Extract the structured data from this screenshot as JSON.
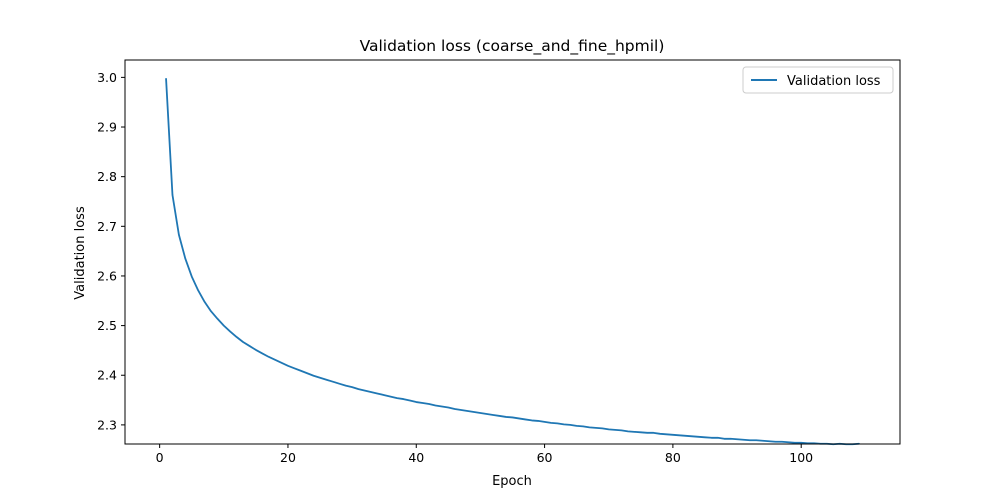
{
  "chart_data": {
    "type": "line",
    "title": "Validation loss (coarse_and_fine_hpmil)",
    "xlabel": "Epoch",
    "ylabel": "Validation loss",
    "xlim": [
      -5.4,
      115.4
    ],
    "ylim": [
      2.2615,
      3.035
    ],
    "xticks": [
      0,
      20,
      40,
      60,
      80,
      100
    ],
    "xtick_labels": [
      "0",
      "20",
      "40",
      "60",
      "80",
      "100"
    ],
    "yticks": [
      2.3,
      2.4,
      2.5,
      2.6,
      2.7,
      2.8,
      2.9,
      3.0
    ],
    "ytick_labels": [
      "2.3",
      "2.4",
      "2.5",
      "2.6",
      "2.7",
      "2.8",
      "2.9",
      "3.0"
    ],
    "grid": false,
    "legend_position": "top-right",
    "series": [
      {
        "name": "Validation loss",
        "color": "#1f77b4",
        "x": [
          1,
          2,
          3,
          4,
          5,
          6,
          7,
          8,
          9,
          10,
          11,
          12,
          13,
          14,
          15,
          16,
          17,
          18,
          19,
          20,
          21,
          22,
          23,
          24,
          25,
          26,
          27,
          28,
          29,
          30,
          31,
          32,
          33,
          34,
          35,
          36,
          37,
          38,
          39,
          40,
          41,
          42,
          43,
          44,
          45,
          46,
          47,
          48,
          49,
          50,
          51,
          52,
          53,
          54,
          55,
          56,
          57,
          58,
          59,
          60,
          61,
          62,
          63,
          64,
          65,
          66,
          67,
          68,
          69,
          70,
          71,
          72,
          73,
          74,
          75,
          76,
          77,
          78,
          79,
          80,
          81,
          82,
          83,
          84,
          85,
          86,
          87,
          88,
          89,
          90,
          91,
          92,
          93,
          94,
          95,
          96,
          97,
          98,
          99,
          100,
          101,
          102,
          103,
          104,
          105,
          106,
          107,
          108,
          109
        ],
        "values": [
          2.997,
          2.763,
          2.683,
          2.635,
          2.599,
          2.571,
          2.548,
          2.529,
          2.514,
          2.5,
          2.488,
          2.477,
          2.467,
          2.459,
          2.451,
          2.444,
          2.437,
          2.431,
          2.425,
          2.419,
          2.414,
          2.409,
          2.404,
          2.399,
          2.395,
          2.391,
          2.387,
          2.383,
          2.379,
          2.376,
          2.372,
          2.369,
          2.366,
          2.363,
          2.36,
          2.357,
          2.354,
          2.352,
          2.349,
          2.346,
          2.344,
          2.342,
          2.339,
          2.337,
          2.335,
          2.332,
          2.33,
          2.328,
          2.326,
          2.324,
          2.322,
          2.32,
          2.318,
          2.316,
          2.315,
          2.313,
          2.311,
          2.309,
          2.308,
          2.306,
          2.304,
          2.303,
          2.301,
          2.3,
          2.298,
          2.297,
          2.295,
          2.294,
          2.293,
          2.291,
          2.29,
          2.289,
          2.287,
          2.286,
          2.285,
          2.284,
          2.284,
          2.282,
          2.281,
          2.28,
          2.279,
          2.278,
          2.277,
          2.276,
          2.275,
          2.274,
          2.274,
          2.272,
          2.272,
          2.271,
          2.27,
          2.269,
          2.269,
          2.268,
          2.267,
          2.266,
          2.266,
          2.265,
          2.264,
          2.264,
          2.263,
          2.263,
          2.262,
          2.262,
          2.261,
          2.262,
          2.261,
          2.261,
          2.262
        ]
      }
    ]
  }
}
